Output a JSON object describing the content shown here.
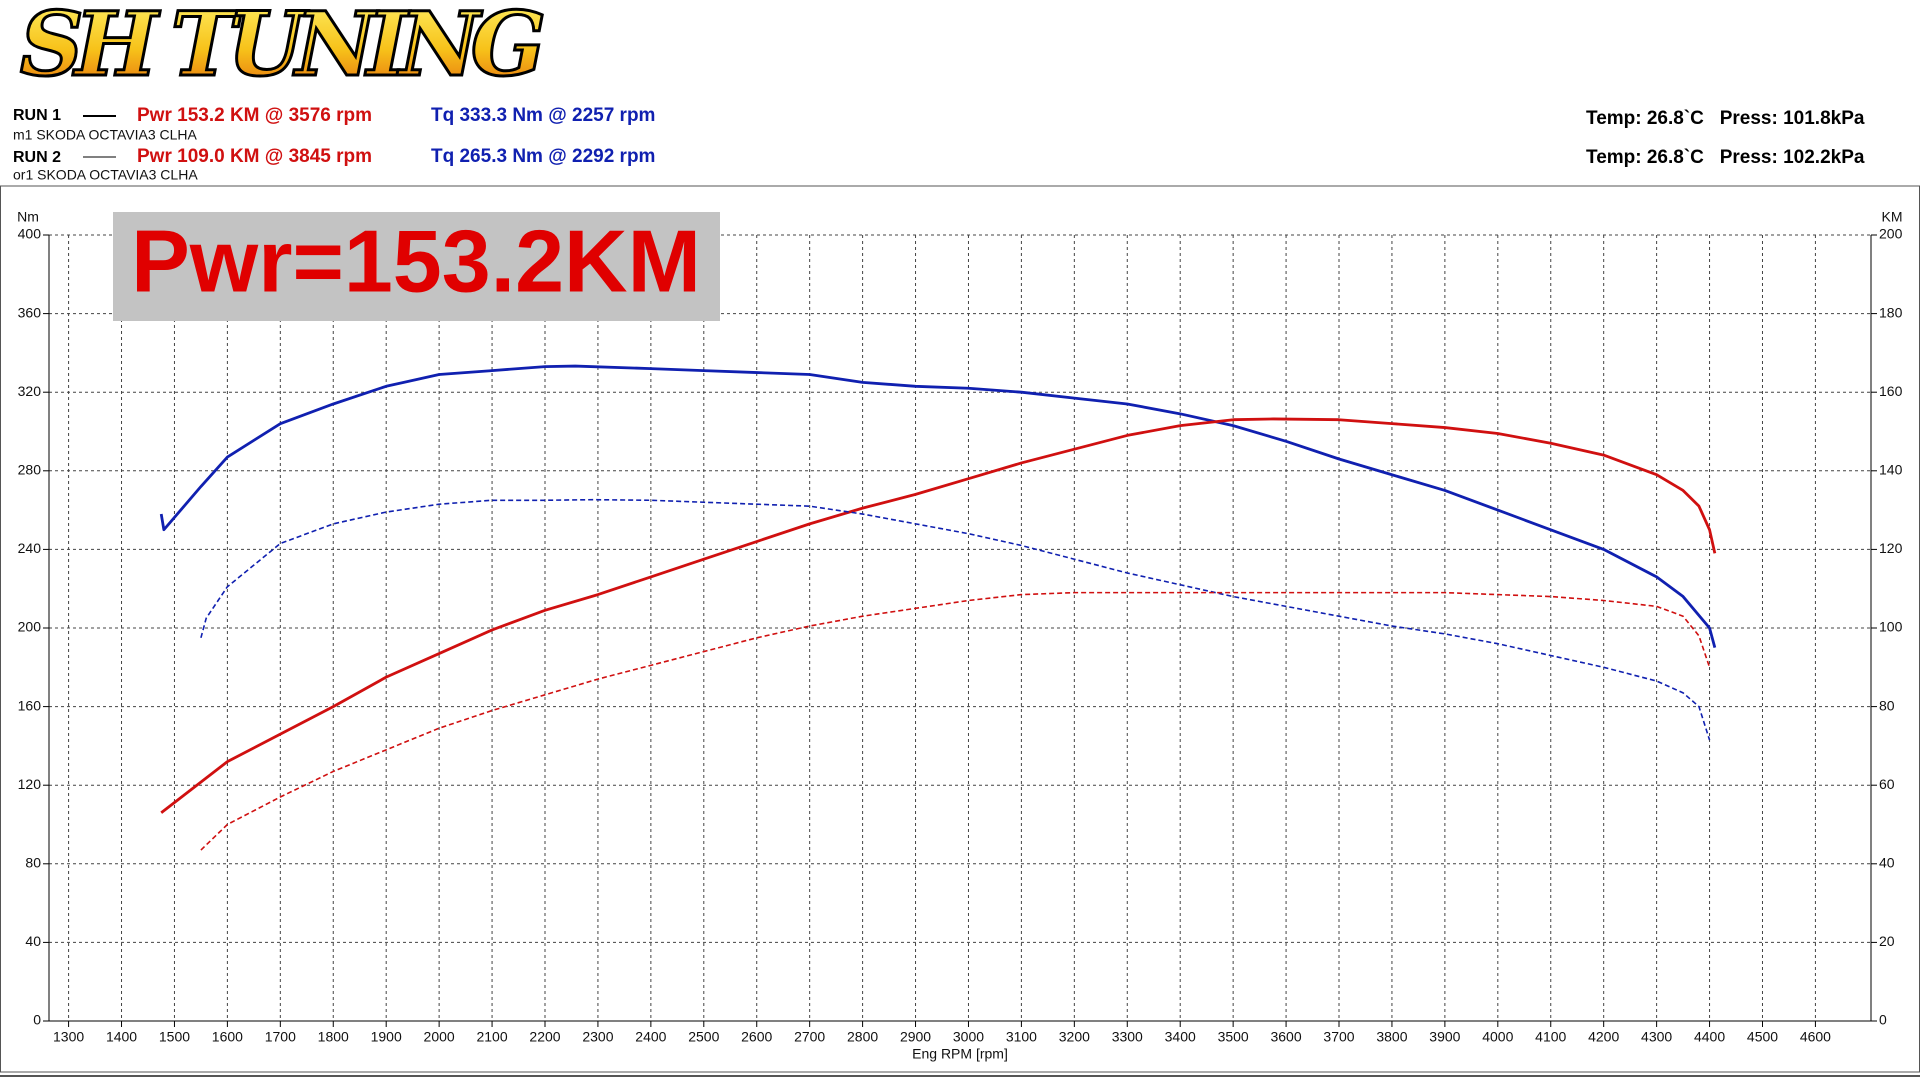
{
  "header": {
    "logo": "SH TUNING",
    "runs": [
      {
        "label": "RUN 1",
        "power": "Pwr  153.2 KM @ 3576 rpm",
        "torque": "Tq 333.3 Nm @ 2257 rpm",
        "vehicle": "m1 SKODA OCTAVIA3 CLHA",
        "conditions": "Temp: 26.8`C   Press: 101.8kPa"
      },
      {
        "label": "RUN 2",
        "power": "Pwr  109.0 KM @ 3845 rpm",
        "torque": "Tq 265.3 Nm @ 2292 rpm",
        "vehicle": "or1 SKODA OCTAVIA3 CLHA",
        "conditions": "Temp: 26.8`C   Press: 102.2kPa"
      }
    ]
  },
  "chart_data": {
    "type": "line",
    "annotation": "Pwr=153.2KM",
    "xlabel": "Eng RPM [rpm]",
    "ylabel": "Nm",
    "y2label": "KM",
    "grid": true,
    "xlim": [
      1263,
      4705
    ],
    "xticks": [
      1300,
      1400,
      1500,
      1600,
      1700,
      1800,
      1900,
      2000,
      2100,
      2200,
      2300,
      2400,
      2500,
      2600,
      2700,
      2800,
      2900,
      3000,
      3100,
      3200,
      3300,
      3400,
      3500,
      3600,
      3700,
      3800,
      3900,
      4000,
      4100,
      4200,
      4300,
      4400,
      4500,
      4600
    ],
    "ylim": [
      0,
      400
    ],
    "yticks": [
      0,
      40,
      80,
      120,
      160,
      200,
      240,
      280,
      320,
      360,
      400
    ],
    "y2lim": [
      0,
      200
    ],
    "y2ticks": [
      0,
      20,
      40,
      60,
      80,
      100,
      120,
      140,
      160,
      180,
      200
    ],
    "series": [
      {
        "color": "#1020b0",
        "line_style": "solid",
        "axis": "y",
        "x": [
          1475,
          1480,
          1550,
          1600,
          1700,
          1800,
          1900,
          2000,
          2100,
          2200,
          2257,
          2400,
          2500,
          2600,
          2700,
          2800,
          2900,
          3000,
          3100,
          3200,
          3300,
          3400,
          3500,
          3600,
          3700,
          3800,
          3900,
          4000,
          4100,
          4200,
          4300,
          4350,
          4400,
          4410
        ],
        "values": [
          258,
          250,
          272,
          287,
          304,
          314,
          323,
          329,
          331,
          333,
          333.3,
          332,
          331,
          330,
          329,
          325,
          323,
          322,
          320,
          317,
          314,
          309,
          303,
          295,
          286,
          278,
          270,
          260,
          250,
          240,
          226,
          216,
          200,
          190
        ]
      },
      {
        "color": "#d01010",
        "line_style": "solid",
        "axis": "y2",
        "x": [
          1475,
          1600,
          1700,
          1800,
          1900,
          2000,
          2100,
          2200,
          2300,
          2400,
          2500,
          2600,
          2700,
          2800,
          2900,
          3000,
          3100,
          3200,
          3300,
          3400,
          3500,
          3576,
          3700,
          3800,
          3900,
          4000,
          4100,
          4200,
          4300,
          4350,
          4380,
          4400,
          4410
        ],
        "values": [
          53,
          66,
          73,
          80,
          87.5,
          93.5,
          99.5,
          104.5,
          108.5,
          113,
          117.5,
          122,
          126.5,
          130.5,
          134,
          138,
          142,
          145.5,
          149,
          151.5,
          153,
          153.2,
          153,
          152,
          151,
          149.5,
          147,
          144,
          139,
          135,
          131,
          125,
          119
        ]
      },
      {
        "color": "#1020b0",
        "line_style": "dashed",
        "axis": "y",
        "x": [
          1550,
          1560,
          1600,
          1700,
          1800,
          1900,
          2000,
          2100,
          2200,
          2292,
          2400,
          2500,
          2600,
          2700,
          2800,
          2900,
          3000,
          3100,
          3200,
          3300,
          3400,
          3500,
          3600,
          3700,
          3800,
          3900,
          4000,
          4100,
          4200,
          4300,
          4350,
          4380,
          4400
        ],
        "values": [
          195,
          205,
          221,
          243,
          253,
          259,
          263,
          265,
          265,
          265.3,
          265,
          264,
          263,
          262,
          258,
          253,
          248,
          242,
          235,
          228,
          222,
          216,
          211,
          206,
          201,
          197,
          192,
          186,
          180,
          173,
          167,
          160,
          143
        ]
      },
      {
        "color": "#d01010",
        "line_style": "dashed",
        "axis": "y2",
        "x": [
          1550,
          1600,
          1700,
          1800,
          1900,
          2000,
          2100,
          2200,
          2300,
          2400,
          2500,
          2600,
          2700,
          2800,
          2900,
          3000,
          3100,
          3200,
          3300,
          3400,
          3500,
          3600,
          3700,
          3845,
          3900,
          4000,
          4100,
          4200,
          4300,
          4350,
          4380,
          4400
        ],
        "values": [
          43.5,
          50,
          57,
          63.5,
          69,
          74.5,
          79,
          83,
          87,
          90.5,
          94,
          97.5,
          100.5,
          103,
          105,
          107,
          108.5,
          109,
          109,
          109,
          109,
          109,
          109,
          109.0,
          109,
          108.5,
          108,
          107,
          105.5,
          103,
          98,
          90
        ]
      }
    ]
  }
}
